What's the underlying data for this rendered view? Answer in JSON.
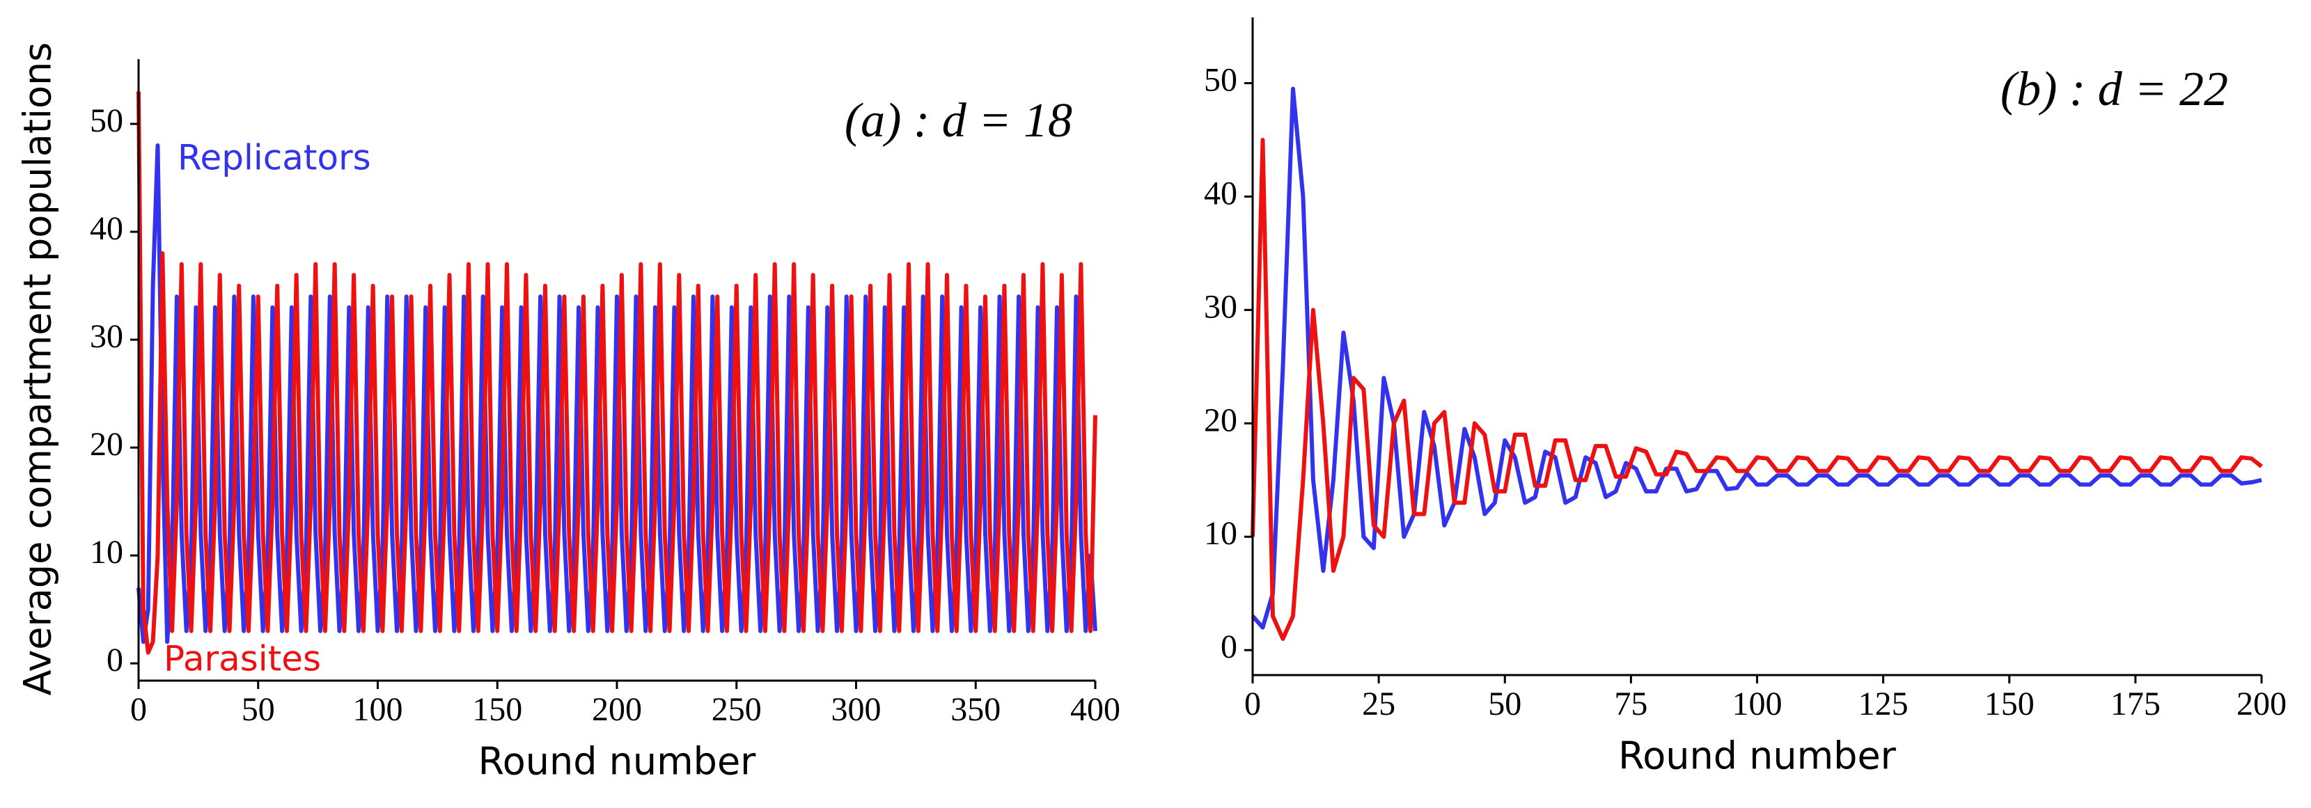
{
  "chart_data": [
    {
      "type": "line",
      "title": "(a) : d = 18",
      "xlabel": "Round number",
      "ylabel": "Average compartment populations",
      "x": [
        0,
        2,
        4,
        6,
        8,
        10,
        12,
        14,
        16,
        18,
        20,
        22,
        24,
        26,
        28,
        30,
        32,
        34,
        36,
        38,
        40,
        42,
        44,
        46,
        48,
        50,
        52,
        54,
        56,
        58,
        60,
        62,
        64,
        66,
        68,
        70,
        72,
        74,
        76,
        78,
        80,
        82,
        84,
        86,
        88,
        90,
        92,
        94,
        96,
        98,
        100,
        102,
        104,
        106,
        108,
        110,
        112,
        114,
        116,
        118,
        120,
        122,
        124,
        126,
        128,
        130,
        132,
        134,
        136,
        138,
        140,
        142,
        144,
        146,
        148,
        150,
        152,
        154,
        156,
        158,
        160,
        162,
        164,
        166,
        168,
        170,
        172,
        174,
        176,
        178,
        180,
        182,
        184,
        186,
        188,
        190,
        192,
        194,
        196,
        198,
        200,
        202,
        204,
        206,
        208,
        210,
        212,
        214,
        216,
        218,
        220,
        222,
        224,
        226,
        228,
        230,
        232,
        234,
        236,
        238,
        240,
        242,
        244,
        246,
        248,
        250,
        252,
        254,
        256,
        258,
        260,
        262,
        264,
        266,
        268,
        270,
        272,
        274,
        276,
        278,
        280,
        282,
        284,
        286,
        288,
        290,
        292,
        294,
        296,
        298,
        300,
        302,
        304,
        306,
        308,
        310,
        312,
        314,
        316,
        318,
        320,
        322,
        324,
        326,
        328,
        330,
        332,
        334,
        336,
        338,
        340,
        342,
        344,
        346,
        348,
        350,
        352,
        354,
        356,
        358,
        360,
        362,
        364,
        366,
        368,
        370,
        372,
        374,
        376,
        378,
        380,
        382,
        384,
        386,
        388,
        390,
        392,
        394,
        396,
        398,
        400
      ],
      "series": [
        {
          "name": "Replicators",
          "color": "#3333ee",
          "values": [
            7,
            2,
            5,
            35,
            48,
            20,
            2,
            10,
            34,
            12,
            3,
            10,
            33,
            12,
            3,
            10,
            33,
            12,
            3,
            10,
            34,
            12,
            3,
            10,
            34,
            12,
            3,
            10,
            33,
            12,
            3,
            10,
            33,
            12,
            3,
            10,
            34,
            12,
            3,
            10,
            34,
            12,
            3,
            10,
            33,
            12,
            3,
            10,
            33,
            12,
            3,
            10,
            34,
            12,
            3,
            10,
            34,
            12,
            3,
            10,
            33,
            12,
            3,
            10,
            33,
            12,
            3,
            10,
            34,
            12,
            3,
            10,
            34,
            12,
            3,
            10,
            33,
            12,
            3,
            10,
            33,
            12,
            3,
            10,
            34,
            12,
            3,
            10,
            34,
            12,
            3,
            10,
            33,
            12,
            3,
            10,
            33,
            12,
            3,
            10,
            34,
            12,
            3,
            10,
            34,
            12,
            3,
            10,
            33,
            12,
            3,
            10,
            33,
            12,
            3,
            10,
            34,
            12,
            3,
            10,
            34,
            12,
            3,
            10,
            33,
            12,
            3,
            10,
            33,
            12,
            3,
            10,
            34,
            12,
            3,
            10,
            34,
            12,
            3,
            10,
            33,
            12,
            3,
            10,
            33,
            12,
            3,
            10,
            34,
            12,
            3,
            10,
            34,
            12,
            3,
            10,
            33,
            12,
            3,
            10,
            33,
            12,
            3,
            10,
            34,
            12,
            3,
            10,
            34,
            12,
            3,
            10,
            33,
            12,
            3,
            10,
            33,
            12,
            3,
            10,
            34,
            12,
            3,
            10,
            34,
            12,
            3,
            10,
            33,
            12,
            3,
            10,
            33,
            12,
            3,
            10,
            34,
            12,
            3,
            10,
            3
          ]
        },
        {
          "name": "Parasites",
          "color": "#ee1111",
          "values": [
            53,
            5,
            1,
            2,
            10,
            38,
            15,
            3,
            15,
            37,
            12,
            3,
            15,
            37,
            12,
            3,
            15,
            36,
            12,
            3,
            15,
            35,
            12,
            3,
            15,
            34,
            12,
            3,
            15,
            35,
            12,
            3,
            15,
            36,
            12,
            3,
            15,
            37,
            12,
            3,
            15,
            37,
            12,
            3,
            15,
            36,
            12,
            3,
            15,
            35,
            12,
            3,
            15,
            34,
            12,
            3,
            15,
            34,
            12,
            3,
            15,
            35,
            12,
            3,
            15,
            36,
            12,
            3,
            15,
            37,
            12,
            3,
            15,
            37,
            12,
            3,
            15,
            37,
            12,
            3,
            15,
            36,
            12,
            3,
            15,
            35,
            12,
            3,
            15,
            34,
            12,
            3,
            15,
            34,
            12,
            3,
            15,
            35,
            12,
            3,
            15,
            36,
            12,
            3,
            15,
            37,
            12,
            3,
            15,
            37,
            12,
            3,
            15,
            36,
            12,
            3,
            15,
            35,
            12,
            3,
            15,
            34,
            12,
            3,
            15,
            35,
            12,
            3,
            15,
            36,
            12,
            3,
            15,
            37,
            12,
            3,
            15,
            37,
            12,
            3,
            15,
            36,
            12,
            3,
            15,
            35,
            12,
            3,
            15,
            34,
            12,
            3,
            15,
            35,
            12,
            3,
            15,
            36,
            12,
            3,
            15,
            37,
            12,
            3,
            15,
            37,
            12,
            3,
            15,
            36,
            12,
            3,
            15,
            35,
            12,
            3,
            15,
            34,
            12,
            3,
            15,
            35,
            12,
            3,
            15,
            36,
            12,
            3,
            15,
            37,
            12,
            3,
            15,
            36,
            12,
            3,
            15,
            37,
            12,
            3,
            23
          ]
        }
      ],
      "xlim": [
        0,
        400
      ],
      "ylim": [
        -1.6,
        56
      ],
      "xticks": [
        0,
        50,
        100,
        150,
        200,
        250,
        300,
        350,
        400
      ],
      "yticks": [
        0,
        10,
        20,
        30,
        40,
        50
      ]
    },
    {
      "type": "line",
      "title": "(b) : d = 22",
      "xlabel": "Round number",
      "x": [
        0,
        2,
        4,
        6,
        8,
        10,
        12,
        14,
        16,
        18,
        20,
        22,
        24,
        26,
        28,
        30,
        32,
        34,
        36,
        38,
        40,
        42,
        44,
        46,
        48,
        50,
        52,
        54,
        56,
        58,
        60,
        62,
        64,
        66,
        68,
        70,
        72,
        74,
        76,
        78,
        80,
        82,
        84,
        86,
        88,
        90,
        92,
        94,
        96,
        98,
        100,
        102,
        104,
        106,
        108,
        110,
        112,
        114,
        116,
        118,
        120,
        122,
        124,
        126,
        128,
        130,
        132,
        134,
        136,
        138,
        140,
        142,
        144,
        146,
        148,
        150,
        152,
        154,
        156,
        158,
        160,
        162,
        164,
        166,
        168,
        170,
        172,
        174,
        176,
        178,
        180,
        182,
        184,
        186,
        188,
        190,
        192,
        194,
        196,
        198,
        200
      ],
      "series": [
        {
          "color": "#3333ee",
          "values": [
            3,
            2,
            5,
            25,
            49.5,
            40,
            15,
            7,
            15,
            28,
            22,
            10,
            9,
            24,
            20,
            10,
            12,
            21,
            18,
            11,
            13,
            19.5,
            17,
            12,
            13,
            18.5,
            17,
            13,
            13.5,
            17.5,
            17,
            13,
            13.5,
            17,
            16.5,
            13.5,
            14,
            16.5,
            16,
            14,
            14,
            16,
            16,
            14,
            14.2,
            15.8,
            15.8,
            14.2,
            14.3,
            15.6,
            14.6,
            14.6,
            15.4,
            15.4,
            14.6,
            14.6,
            15.4,
            15.4,
            14.6,
            14.6,
            15.4,
            15.4,
            14.6,
            14.6,
            15.4,
            15.4,
            14.6,
            14.6,
            15.4,
            15.4,
            14.6,
            14.6,
            15.4,
            15.4,
            14.6,
            14.6,
            15.4,
            15.4,
            14.6,
            14.6,
            15.4,
            15.4,
            14.6,
            14.6,
            15.4,
            15.4,
            14.6,
            14.6,
            15.4,
            15.4,
            14.6,
            14.6,
            15.4,
            15.4,
            14.6,
            14.6,
            15.4,
            15.4,
            14.7,
            14.8,
            15
          ]
        },
        {
          "color": "#ee1111",
          "values": [
            10,
            45,
            3,
            1,
            3,
            15,
            30,
            20,
            7,
            10,
            24,
            23,
            11,
            10,
            20,
            22,
            12,
            12,
            20,
            21,
            13,
            13,
            20,
            19,
            14,
            14,
            19,
            19,
            14.5,
            14.5,
            18.5,
            18.5,
            15,
            15,
            18,
            18,
            15.3,
            15.3,
            17.8,
            17.5,
            15.5,
            15.5,
            17.5,
            17.3,
            15.8,
            15.8,
            17,
            16.9,
            15.8,
            15.8,
            17,
            16.9,
            15.8,
            15.8,
            17,
            16.9,
            15.8,
            15.8,
            17,
            16.9,
            15.8,
            15.8,
            17,
            16.9,
            15.8,
            15.8,
            17,
            16.9,
            15.8,
            15.8,
            17,
            16.9,
            15.8,
            15.8,
            17,
            16.9,
            15.8,
            15.8,
            17,
            16.9,
            15.8,
            15.8,
            17,
            16.9,
            15.8,
            15.8,
            17,
            16.9,
            15.8,
            15.8,
            17,
            16.9,
            15.8,
            15.8,
            17,
            16.9,
            15.8,
            15.8,
            17,
            16.9,
            16.2
          ]
        }
      ],
      "xlim": [
        0,
        200
      ],
      "ylim": [
        -2.2,
        55.8
      ],
      "xticks": [
        0,
        25,
        50,
        75,
        100,
        125,
        150,
        175,
        200
      ],
      "yticks": [
        0,
        10,
        20,
        30,
        40,
        50
      ]
    }
  ]
}
